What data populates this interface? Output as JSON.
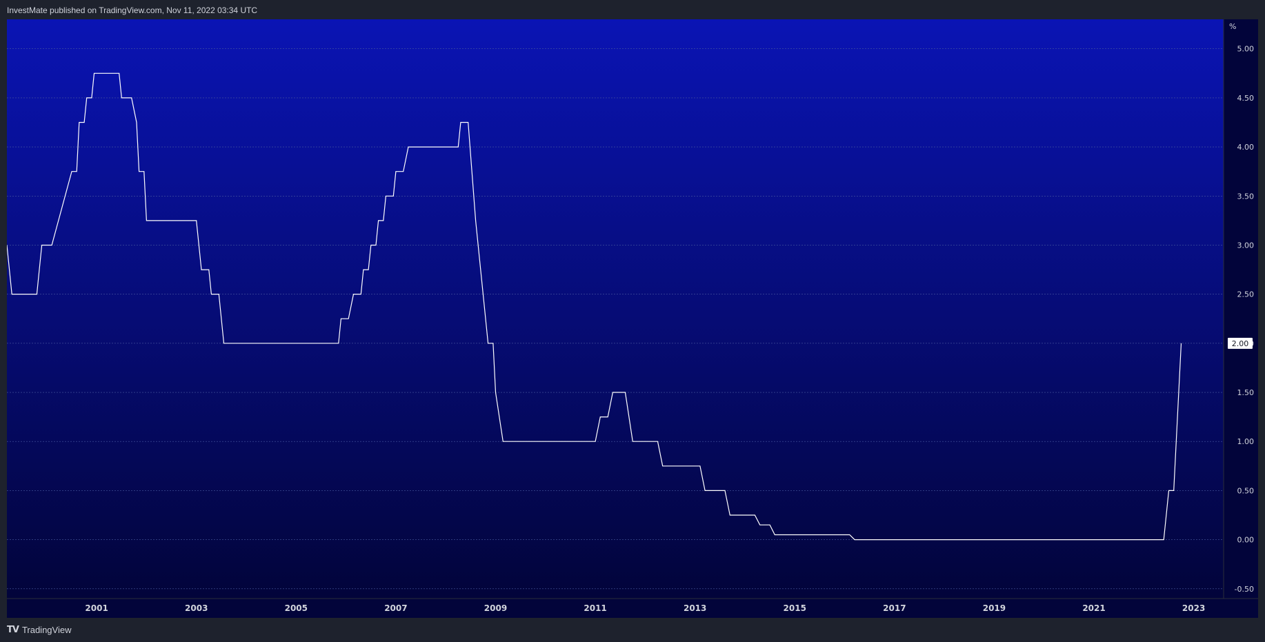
{
  "header": {
    "published_text": "InvestMate published on TradingView.com, Nov 11, 2022 03:34 UTC"
  },
  "footer": {
    "logo_glyph": "𝟕",
    "brand": "TradingView"
  },
  "colors": {
    "page_bg": "#1e222d",
    "plot_top": "#0a14b4",
    "plot_bottom": "#02043a",
    "line": "#ffffff",
    "grid": "#4a5aa0",
    "text": "#d1d4dc"
  },
  "chart_data": {
    "type": "line",
    "unit_label": "%",
    "ylim": [
      -0.6,
      5.3
    ],
    "xlim": [
      1999.2,
      2023.6
    ],
    "yticks": [
      "5.00",
      "4.50",
      "4.00",
      "3.50",
      "3.00",
      "2.50",
      "2.00",
      "1.50",
      "1.00",
      "0.50",
      "0.00",
      "-0.50"
    ],
    "ytick_values": [
      5.0,
      4.5,
      4.0,
      3.5,
      3.0,
      2.5,
      2.0,
      1.5,
      1.0,
      0.5,
      0.0,
      -0.5
    ],
    "xticks": [
      "2001",
      "2003",
      "2005",
      "2007",
      "2009",
      "2011",
      "2013",
      "2015",
      "2017",
      "2019",
      "2021",
      "2023"
    ],
    "xtick_values": [
      2001,
      2003,
      2005,
      2007,
      2009,
      2011,
      2013,
      2015,
      2017,
      2019,
      2021,
      2023
    ],
    "last_value_label": "2.00",
    "grid": true,
    "series": [
      {
        "points": [
          [
            1999.2,
            3.0
          ],
          [
            1999.3,
            2.5
          ],
          [
            1999.8,
            2.5
          ],
          [
            1999.9,
            3.0
          ],
          [
            2000.1,
            3.0
          ],
          [
            2000.5,
            3.75
          ],
          [
            2000.6,
            3.75
          ],
          [
            2000.65,
            4.25
          ],
          [
            2000.75,
            4.25
          ],
          [
            2000.8,
            4.5
          ],
          [
            2000.9,
            4.5
          ],
          [
            2000.95,
            4.75
          ],
          [
            2001.45,
            4.75
          ],
          [
            2001.5,
            4.5
          ],
          [
            2001.7,
            4.5
          ],
          [
            2001.8,
            4.25
          ],
          [
            2001.85,
            3.75
          ],
          [
            2001.95,
            3.75
          ],
          [
            2002.0,
            3.25
          ],
          [
            2003.0,
            3.25
          ],
          [
            2003.1,
            2.75
          ],
          [
            2003.25,
            2.75
          ],
          [
            2003.3,
            2.5
          ],
          [
            2003.45,
            2.5
          ],
          [
            2003.55,
            2.0
          ],
          [
            2005.85,
            2.0
          ],
          [
            2005.9,
            2.25
          ],
          [
            2006.05,
            2.25
          ],
          [
            2006.15,
            2.5
          ],
          [
            2006.3,
            2.5
          ],
          [
            2006.35,
            2.75
          ],
          [
            2006.45,
            2.75
          ],
          [
            2006.5,
            3.0
          ],
          [
            2006.6,
            3.0
          ],
          [
            2006.65,
            3.25
          ],
          [
            2006.75,
            3.25
          ],
          [
            2006.8,
            3.5
          ],
          [
            2006.95,
            3.5
          ],
          [
            2007.0,
            3.75
          ],
          [
            2007.15,
            3.75
          ],
          [
            2007.25,
            4.0
          ],
          [
            2008.25,
            4.0
          ],
          [
            2008.3,
            4.25
          ],
          [
            2008.45,
            4.25
          ],
          [
            2008.6,
            3.25
          ],
          [
            2008.75,
            2.5
          ],
          [
            2008.85,
            2.0
          ],
          [
            2008.95,
            2.0
          ],
          [
            2009.0,
            1.5
          ],
          [
            2009.15,
            1.0
          ],
          [
            2011.0,
            1.0
          ],
          [
            2011.1,
            1.25
          ],
          [
            2011.25,
            1.25
          ],
          [
            2011.35,
            1.5
          ],
          [
            2011.6,
            1.5
          ],
          [
            2011.75,
            1.0
          ],
          [
            2012.25,
            1.0
          ],
          [
            2012.35,
            0.75
          ],
          [
            2013.1,
            0.75
          ],
          [
            2013.2,
            0.5
          ],
          [
            2013.6,
            0.5
          ],
          [
            2013.7,
            0.25
          ],
          [
            2014.2,
            0.25
          ],
          [
            2014.3,
            0.15
          ],
          [
            2014.5,
            0.15
          ],
          [
            2014.6,
            0.05
          ],
          [
            2016.1,
            0.05
          ],
          [
            2016.2,
            0.0
          ],
          [
            2022.4,
            0.0
          ],
          [
            2022.5,
            0.5
          ],
          [
            2022.6,
            0.5
          ],
          [
            2022.75,
            2.0
          ]
        ]
      }
    ]
  }
}
